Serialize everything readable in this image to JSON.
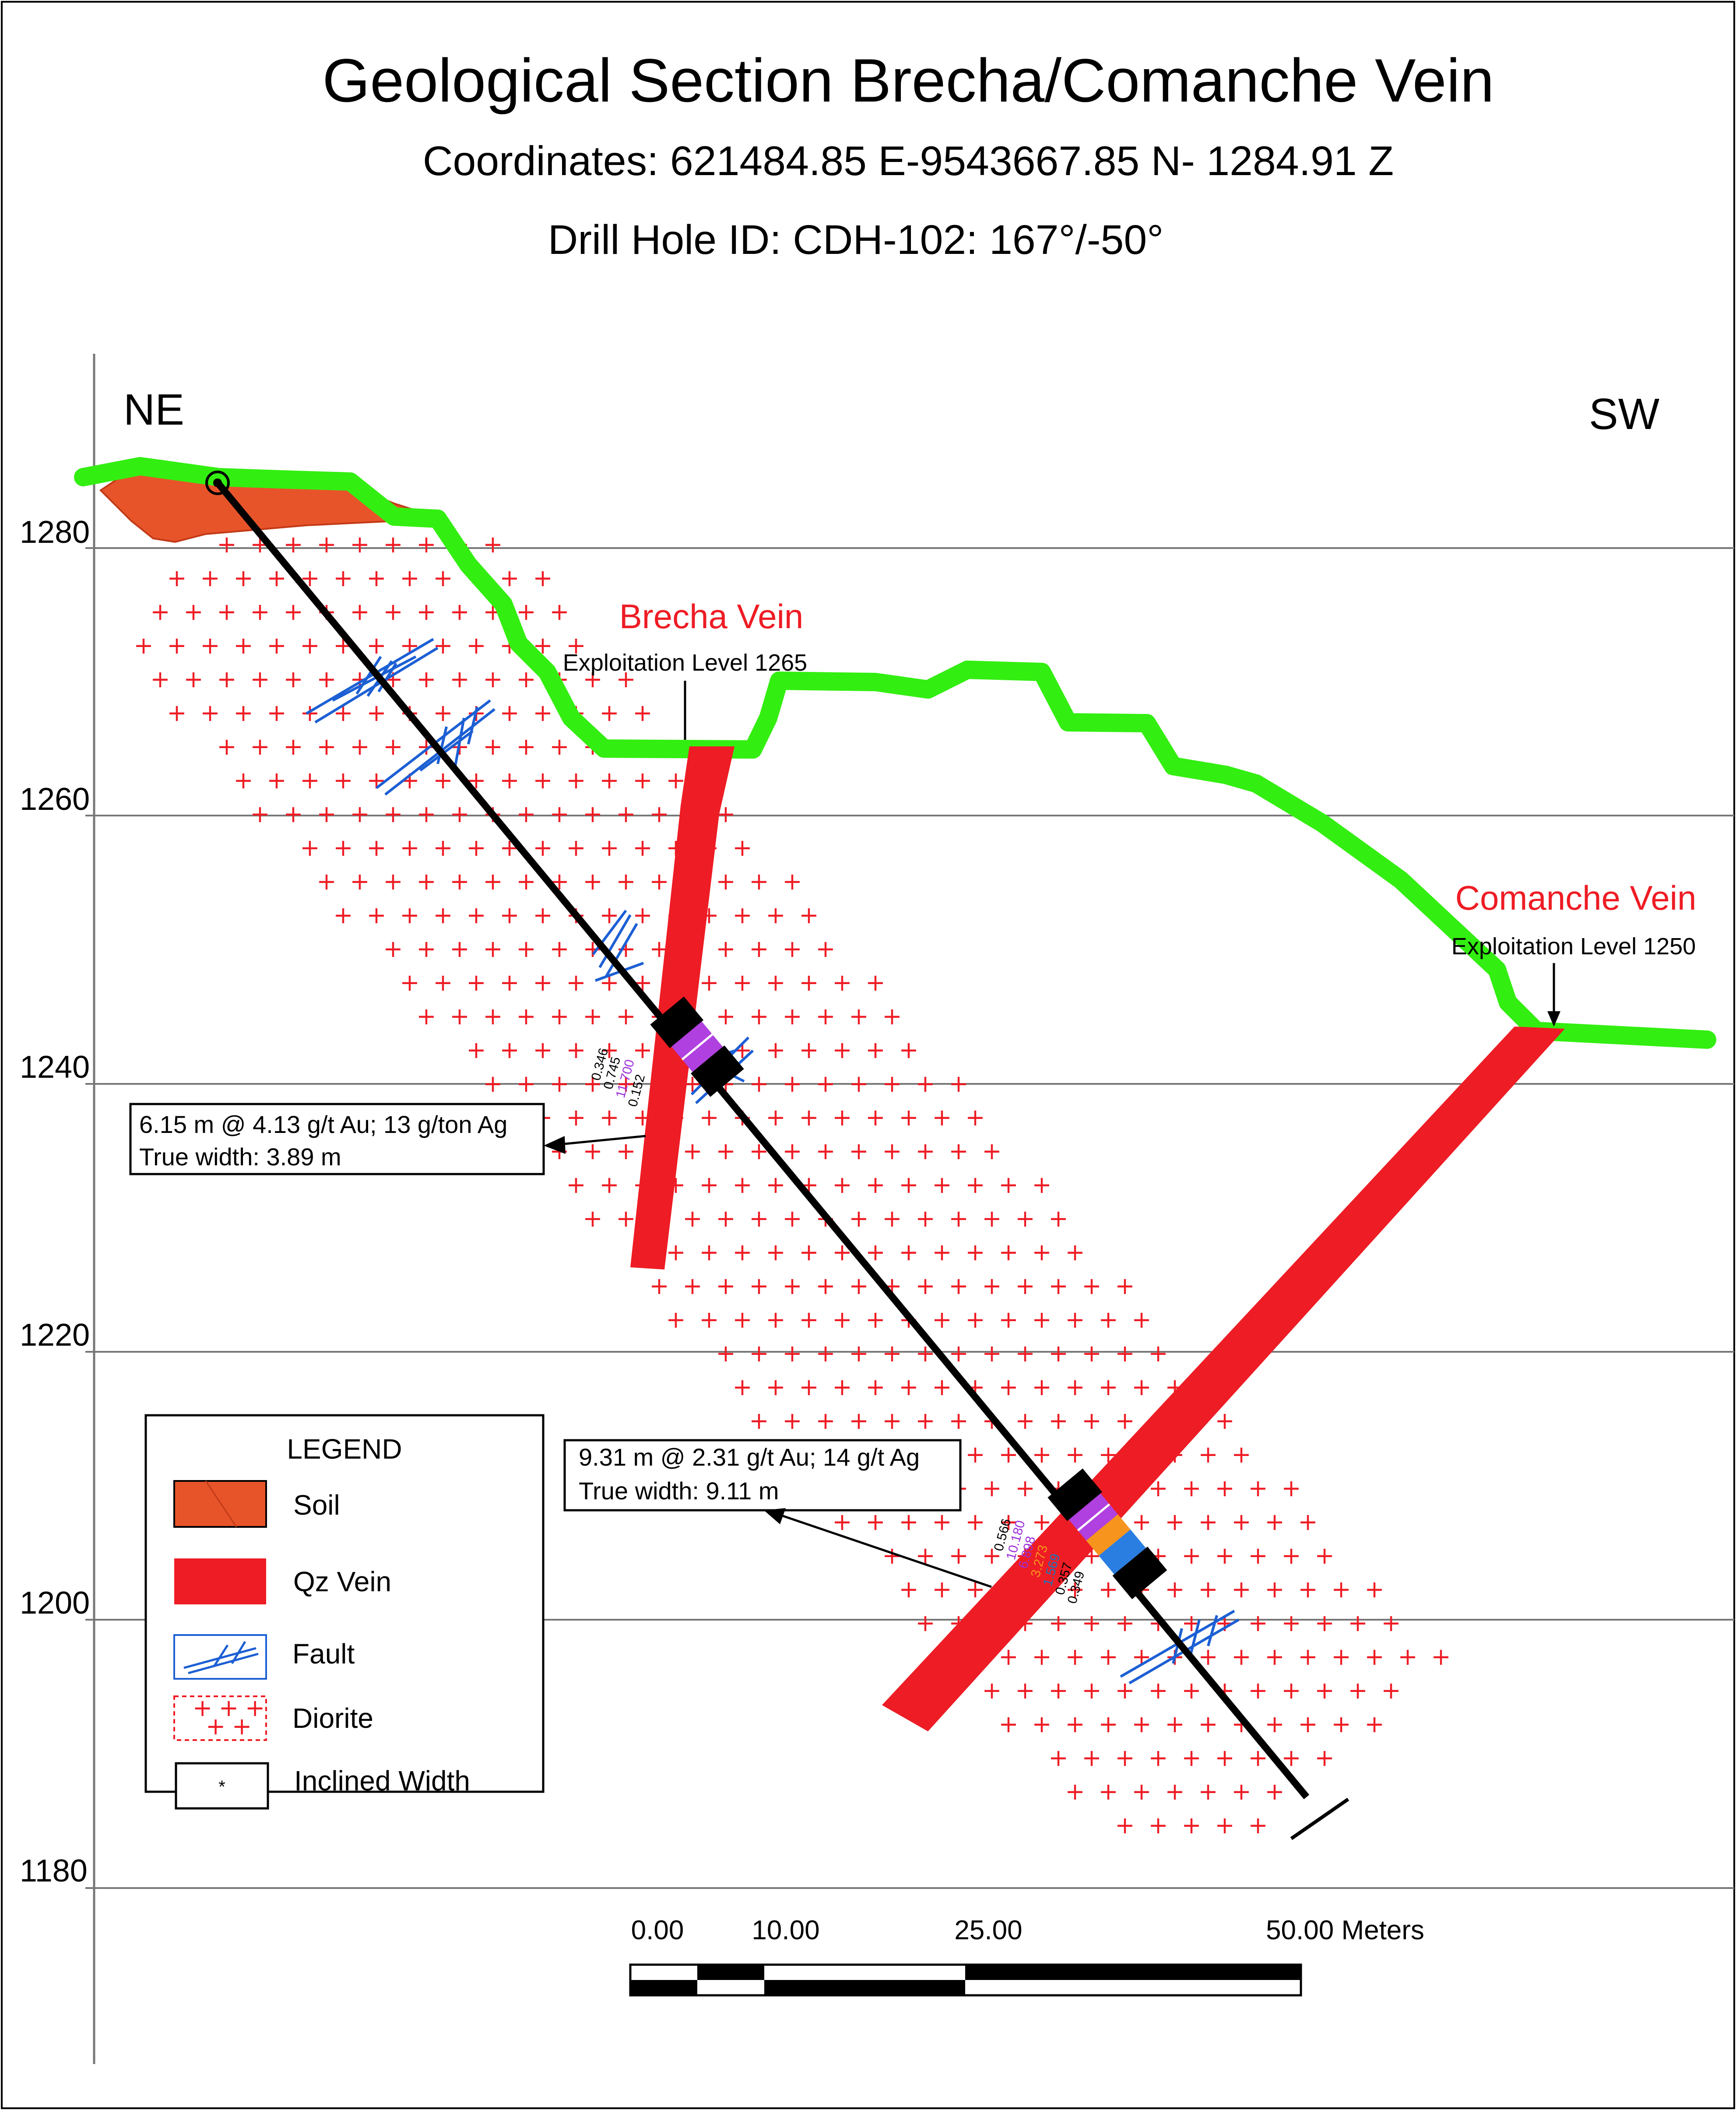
{
  "title": "Geological Section Brecha/Comanche Vein",
  "coordinates": "Coordinates: 621484.85 E-9543667.85 N- 1284.91 Z",
  "drill_hole": "Drill Hole ID: CDH-102: 167°/-50°",
  "direction_left": "NE",
  "direction_right": "SW",
  "elevations": [
    "1280",
    "1260",
    "1240",
    "1220",
    "1200",
    "1180"
  ],
  "veins": {
    "brecha": {
      "name": "Brecha Vein",
      "level": "Exploitation Level 1265"
    },
    "comanche": {
      "name": "Comanche Vein",
      "level": "Exploitation Level 1250"
    }
  },
  "intercepts": [
    {
      "line1": "6.15 m @ 4.13 g/t Au; 13 g/ton Ag",
      "line2": "True width: 3.89 m"
    },
    {
      "line1": "9.31 m @ 2.31 g/t Au; 14 g/t Ag",
      "line2": "True width: 9.11 m"
    }
  ],
  "assays_brecha": [
    {
      "value": "0.346",
      "color": "#000000"
    },
    {
      "value": "0.745",
      "color": "#000000"
    },
    {
      "value": "11.700",
      "color": "#9b30d9"
    },
    {
      "value": "0.152",
      "color": "#000000"
    }
  ],
  "assays_comanche": [
    {
      "value": "0.566",
      "color": "#000000"
    },
    {
      "value": "10.180",
      "color": "#9b30d9"
    },
    {
      "value": "6.898",
      "color": "#9b30d9"
    },
    {
      "value": "3.273",
      "color": "#f7941d"
    },
    {
      "value": "1.569",
      "color": "#1c75bc"
    },
    {
      "value": "0.357",
      "color": "#000000"
    },
    {
      "value": "0.349",
      "color": "#000000"
    }
  ],
  "legend": {
    "title": "LEGEND",
    "items": [
      {
        "key": "soil",
        "label": "Soil"
      },
      {
        "key": "qz_vein",
        "label": "Qz Vein"
      },
      {
        "key": "fault",
        "label": "Fault"
      },
      {
        "key": "diorite",
        "label": "Diorite"
      },
      {
        "key": "inclined_width",
        "label": "Inclined Width"
      }
    ]
  },
  "scale": {
    "ticks": [
      "0.00",
      "10.00",
      "25.00",
      "50.00 Meters"
    ]
  },
  "colors": {
    "topography": "#33ee11",
    "qz_vein": "#ee1c24",
    "soil": "#e8542a",
    "fault": "#1c5fd4",
    "diorite": "#ee1c24",
    "drill_hole": "#000000",
    "assay_purple": "#b040e0",
    "assay_orange": "#f7941d",
    "assay_blue": "#2a7de1"
  }
}
